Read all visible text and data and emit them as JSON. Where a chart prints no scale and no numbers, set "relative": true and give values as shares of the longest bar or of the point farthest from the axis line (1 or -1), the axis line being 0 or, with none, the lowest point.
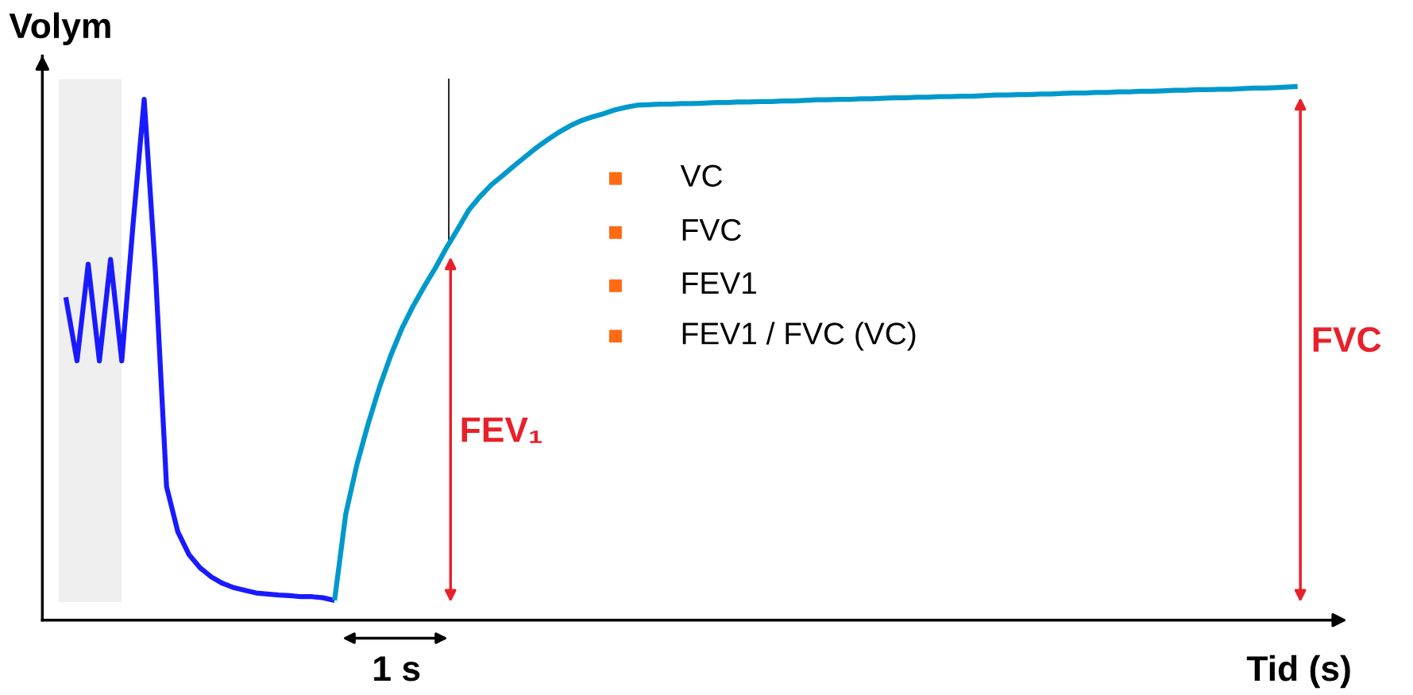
{
  "chart_data": {
    "type": "line",
    "relative": true,
    "xlabel": "Tid (s)",
    "ylabel": "Volym",
    "categories": [
      null,
      null,
      null,
      null,
      null,
      null,
      null,
      null,
      null,
      null,
      null,
      null,
      null,
      null,
      null,
      null,
      null,
      null,
      null,
      null,
      null,
      null,
      null,
      null,
      null,
      null,
      null,
      null,
      null,
      null,
      null,
      null,
      null,
      null,
      null,
      null,
      null,
      null,
      null,
      null,
      null,
      null,
      null,
      null,
      null,
      null,
      null,
      null,
      null,
      null,
      null,
      null,
      null,
      null,
      null,
      null,
      null,
      null,
      null,
      null,
      null,
      null,
      null,
      null,
      null,
      null,
      null,
      null,
      null,
      null,
      null,
      null,
      null,
      null,
      null,
      null,
      null,
      null,
      null,
      null,
      null,
      null,
      null,
      null,
      null,
      null,
      null,
      null,
      null,
      null,
      null,
      null,
      null,
      null,
      null,
      null,
      null,
      null,
      null,
      null,
      null,
      null,
      null,
      null,
      null,
      null,
      null,
      null,
      null,
      null,
      null
    ],
    "series": [
      {
        "color": "#1a1aff",
        "values": [
          0.605,
          0.486,
          0.667,
          0.486,
          0.676,
          0.486,
          0.74,
          0.976,
          0.655,
          0.25,
          0.166,
          0.123,
          0.098,
          0.081,
          0.069,
          0.061,
          0.056,
          0.051,
          0.049,
          0.047,
          0.046,
          0.044,
          0.044,
          0.042,
          0.037,
          null,
          null,
          null,
          null,
          null,
          null,
          null,
          null,
          null,
          null,
          null,
          null,
          null,
          null,
          null,
          null,
          null,
          null,
          null,
          null,
          null,
          null,
          null,
          null,
          null,
          null,
          null,
          null,
          null,
          null,
          null,
          null,
          null,
          null,
          null,
          null,
          null,
          null,
          null,
          null,
          null,
          null,
          null,
          null,
          null,
          null,
          null,
          null,
          null,
          null,
          null,
          null,
          null,
          null,
          null,
          null,
          null,
          null,
          null,
          null,
          null,
          null,
          null,
          null,
          null,
          null,
          null,
          null,
          null,
          null,
          null,
          null,
          null,
          null,
          null,
          null,
          null,
          null,
          null,
          null,
          null,
          null,
          null,
          null,
          null,
          null
        ]
      },
      {
        "color": "#0099cc",
        "values": [
          null,
          null,
          null,
          null,
          null,
          null,
          null,
          null,
          null,
          null,
          null,
          null,
          null,
          null,
          null,
          null,
          null,
          null,
          null,
          null,
          null,
          null,
          null,
          null,
          0.037,
          0.199,
          0.292,
          0.368,
          0.436,
          0.495,
          0.546,
          0.588,
          0.625,
          0.66,
          0.698,
          0.733,
          0.769,
          0.794,
          0.816,
          0.833,
          0.851,
          0.868,
          0.885,
          0.9,
          0.914,
          0.926,
          0.936,
          0.943,
          0.949,
          0.956,
          0.961,
          0.965,
          0.966,
          0.967,
          0.967,
          0.968,
          0.968,
          0.969,
          0.97,
          0.97,
          0.971,
          0.971,
          0.972,
          0.972,
          0.973,
          0.973,
          0.974,
          0.975,
          0.975,
          0.976,
          0.976,
          0.977,
          0.977,
          0.978,
          0.979,
          0.979,
          0.98,
          0.98,
          0.981,
          0.981,
          0.982,
          0.982,
          0.983,
          0.984,
          0.984,
          0.985,
          0.985,
          0.986,
          0.986,
          0.987,
          0.988,
          0.988,
          0.989,
          0.989,
          0.99,
          0.99,
          0.991,
          0.991,
          0.992,
          0.993,
          0.993,
          0.994,
          0.994,
          0.995,
          0.995,
          0.996,
          0.997,
          0.997,
          0.998,
          0.999,
          1.0
        ]
      }
    ],
    "annotations": [
      "VC",
      "FVC",
      "FEV1",
      "FEV1 / FVC (VC)",
      "FEV₁",
      "FVC",
      "1 s"
    ]
  }
}
